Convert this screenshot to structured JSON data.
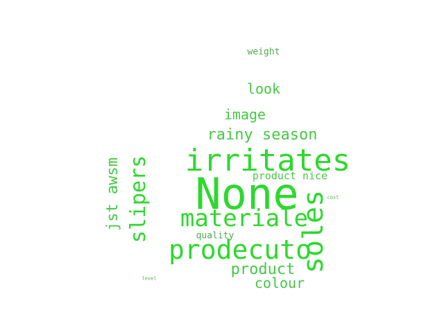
{
  "colors": {
    "background": "#ffffff",
    "main": "#2ed82e",
    "soft": "#45c845",
    "muted": "#4faa4f"
  },
  "words": {
    "none": "None",
    "irritates": "irritates",
    "soles": "soles",
    "materiale": "materiale",
    "prodecuto": "prodecuto",
    "slipers": "slipers",
    "rainy_season": "rainy season",
    "jst_awsm": "jst awsm",
    "image": "image",
    "look": "look",
    "product": "product",
    "colour": "colour",
    "product_nice": "product nice",
    "quality": "quality",
    "weight": "weight",
    "cost": "cost",
    "level": "level"
  }
}
